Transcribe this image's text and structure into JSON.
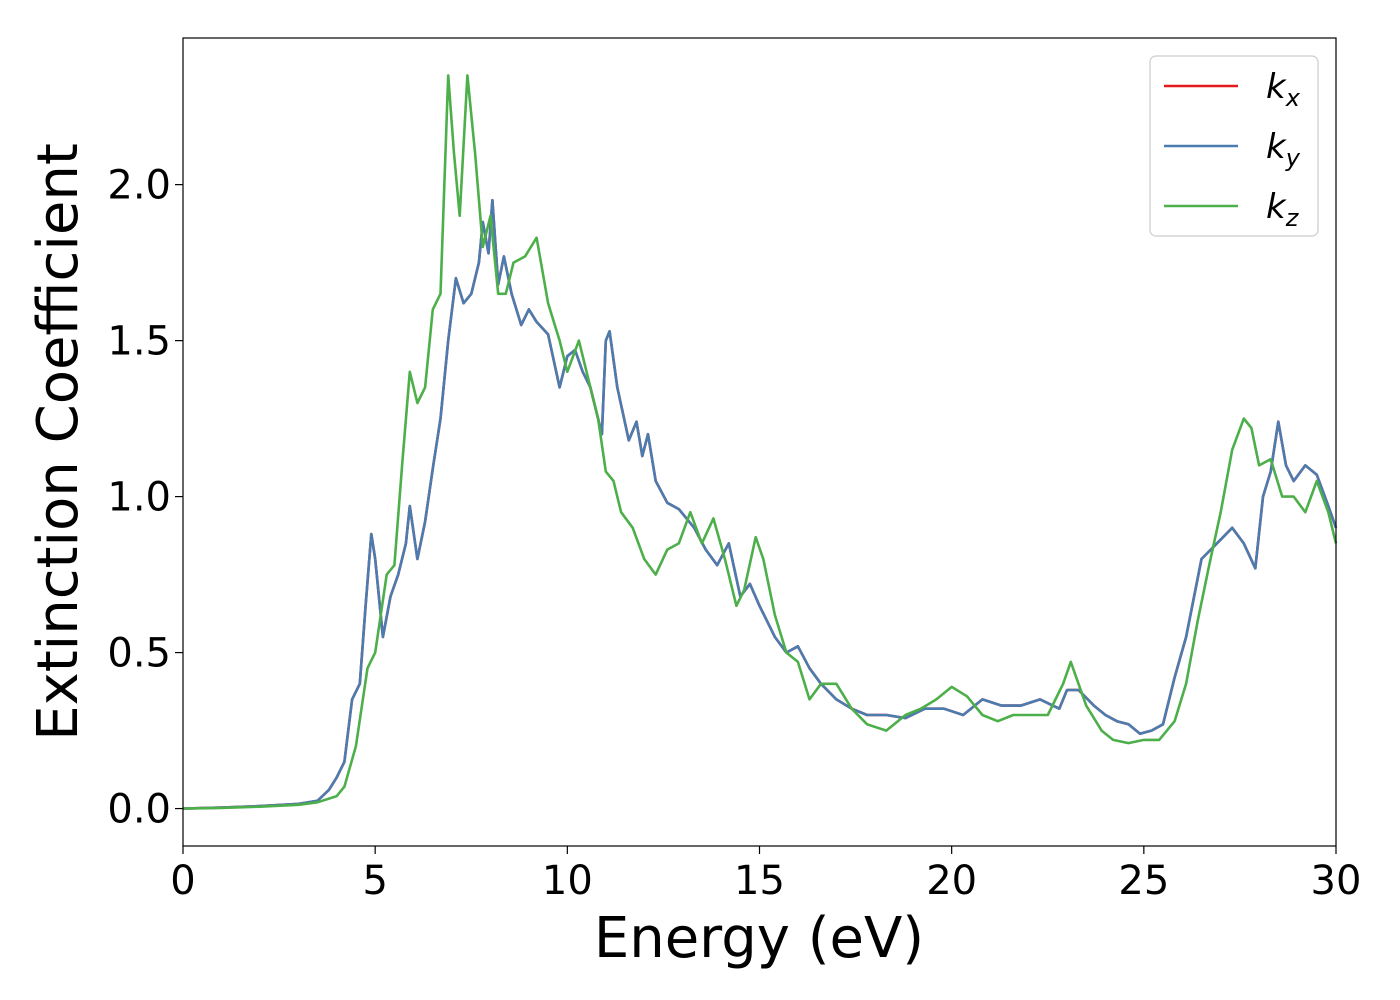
{
  "chart_data": {
    "type": "line",
    "xlabel": "Energy (eV)",
    "ylabel": "Extinction Coefficient",
    "xlim": [
      0,
      30
    ],
    "ylim": [
      -0.12,
      2.47
    ],
    "xticks": [
      "0",
      "5",
      "10",
      "15",
      "20",
      "25",
      "30"
    ],
    "yticks": [
      "0.0",
      "0.5",
      "1.0",
      "1.5",
      "2.0"
    ],
    "grid": false,
    "legend_position": "top-right",
    "series": [
      {
        "name": "k",
        "subscript": "x",
        "color": "#e41a1c",
        "x": [
          0,
          1,
          2,
          3,
          3.5,
          3.8,
          4.0,
          4.2,
          4.4,
          4.6,
          4.75,
          4.9,
          5.0,
          5.2,
          5.4,
          5.6,
          5.8,
          5.9,
          6.1,
          6.3,
          6.5,
          6.7,
          6.9,
          7.1,
          7.3,
          7.5,
          7.7,
          7.8,
          7.95,
          8.05,
          8.2,
          8.35,
          8.55,
          8.8,
          9.0,
          9.2,
          9.5,
          9.8,
          10.0,
          10.2,
          10.4,
          10.6,
          10.9,
          11.0,
          11.1,
          11.3,
          11.6,
          11.8,
          11.95,
          12.1,
          12.3,
          12.6,
          12.9,
          13.1,
          13.3,
          13.6,
          13.9,
          14.2,
          14.5,
          14.75,
          15.0,
          15.4,
          15.7,
          16.0,
          16.3,
          16.6,
          17.0,
          17.4,
          17.8,
          18.3,
          18.8,
          19.3,
          19.8,
          20.3,
          20.8,
          21.3,
          21.8,
          22.3,
          22.8,
          23.0,
          23.3,
          23.7,
          24.0,
          24.3,
          24.6,
          24.9,
          25.2,
          25.5,
          25.8,
          26.1,
          26.5,
          26.9,
          27.3,
          27.6,
          27.9,
          28.1,
          28.3,
          28.5,
          28.7,
          28.9,
          29.2,
          29.5,
          29.8,
          30
        ],
        "y": [
          0,
          0.003,
          0.008,
          0.015,
          0.025,
          0.06,
          0.1,
          0.15,
          0.35,
          0.4,
          0.65,
          0.88,
          0.8,
          0.55,
          0.68,
          0.75,
          0.85,
          0.97,
          0.8,
          0.92,
          1.09,
          1.25,
          1.5,
          1.7,
          1.62,
          1.65,
          1.75,
          1.88,
          1.78,
          1.95,
          1.68,
          1.77,
          1.65,
          1.55,
          1.6,
          1.56,
          1.52,
          1.35,
          1.45,
          1.47,
          1.4,
          1.35,
          1.2,
          1.5,
          1.53,
          1.35,
          1.18,
          1.24,
          1.13,
          1.2,
          1.05,
          0.98,
          0.96,
          0.93,
          0.9,
          0.83,
          0.78,
          0.85,
          0.68,
          0.72,
          0.65,
          0.55,
          0.5,
          0.52,
          0.45,
          0.4,
          0.35,
          0.32,
          0.3,
          0.3,
          0.29,
          0.32,
          0.32,
          0.3,
          0.35,
          0.33,
          0.33,
          0.35,
          0.32,
          0.38,
          0.38,
          0.33,
          0.3,
          0.28,
          0.27,
          0.24,
          0.25,
          0.27,
          0.42,
          0.55,
          0.8,
          0.85,
          0.9,
          0.85,
          0.77,
          1.0,
          1.08,
          1.24,
          1.1,
          1.05,
          1.1,
          1.07,
          0.97,
          0.9
        ]
      },
      {
        "name": "k",
        "subscript": "y",
        "color": "#4a7cb0",
        "x": [
          0,
          1,
          2,
          3,
          3.5,
          3.8,
          4.0,
          4.2,
          4.4,
          4.6,
          4.75,
          4.9,
          5.0,
          5.2,
          5.4,
          5.6,
          5.8,
          5.9,
          6.1,
          6.3,
          6.5,
          6.7,
          6.9,
          7.1,
          7.3,
          7.5,
          7.7,
          7.8,
          7.95,
          8.05,
          8.2,
          8.35,
          8.55,
          8.8,
          9.0,
          9.2,
          9.5,
          9.8,
          10.0,
          10.2,
          10.4,
          10.6,
          10.9,
          11.0,
          11.1,
          11.3,
          11.6,
          11.8,
          11.95,
          12.1,
          12.3,
          12.6,
          12.9,
          13.1,
          13.3,
          13.6,
          13.9,
          14.2,
          14.5,
          14.75,
          15.0,
          15.4,
          15.7,
          16.0,
          16.3,
          16.6,
          17.0,
          17.4,
          17.8,
          18.3,
          18.8,
          19.3,
          19.8,
          20.3,
          20.8,
          21.3,
          21.8,
          22.3,
          22.8,
          23.0,
          23.3,
          23.7,
          24.0,
          24.3,
          24.6,
          24.9,
          25.2,
          25.5,
          25.8,
          26.1,
          26.5,
          26.9,
          27.3,
          27.6,
          27.9,
          28.1,
          28.3,
          28.5,
          28.7,
          28.9,
          29.2,
          29.5,
          29.8,
          30
        ],
        "y": [
          0,
          0.003,
          0.008,
          0.015,
          0.025,
          0.06,
          0.1,
          0.15,
          0.35,
          0.4,
          0.65,
          0.88,
          0.8,
          0.55,
          0.68,
          0.75,
          0.85,
          0.97,
          0.8,
          0.92,
          1.09,
          1.25,
          1.5,
          1.7,
          1.62,
          1.65,
          1.75,
          1.88,
          1.78,
          1.95,
          1.68,
          1.77,
          1.65,
          1.55,
          1.6,
          1.56,
          1.52,
          1.35,
          1.45,
          1.47,
          1.4,
          1.35,
          1.2,
          1.5,
          1.53,
          1.35,
          1.18,
          1.24,
          1.13,
          1.2,
          1.05,
          0.98,
          0.96,
          0.93,
          0.9,
          0.83,
          0.78,
          0.85,
          0.68,
          0.72,
          0.65,
          0.55,
          0.5,
          0.52,
          0.45,
          0.4,
          0.35,
          0.32,
          0.3,
          0.3,
          0.29,
          0.32,
          0.32,
          0.3,
          0.35,
          0.33,
          0.33,
          0.35,
          0.32,
          0.38,
          0.38,
          0.33,
          0.3,
          0.28,
          0.27,
          0.24,
          0.25,
          0.27,
          0.42,
          0.55,
          0.8,
          0.85,
          0.9,
          0.85,
          0.77,
          1.0,
          1.08,
          1.24,
          1.1,
          1.05,
          1.1,
          1.07,
          0.97,
          0.9
        ]
      },
      {
        "name": "k",
        "subscript": "z",
        "color": "#4daf4a",
        "x": [
          0,
          1,
          2,
          3,
          3.5,
          4.0,
          4.2,
          4.5,
          4.8,
          5.0,
          5.3,
          5.5,
          5.7,
          5.9,
          6.1,
          6.3,
          6.5,
          6.7,
          6.9,
          7.05,
          7.2,
          7.4,
          7.6,
          7.8,
          8.0,
          8.2,
          8.4,
          8.6,
          8.9,
          9.2,
          9.5,
          9.8,
          10.0,
          10.3,
          10.6,
          10.8,
          11.0,
          11.2,
          11.4,
          11.7,
          12.0,
          12.3,
          12.6,
          12.9,
          13.2,
          13.5,
          13.8,
          14.1,
          14.4,
          14.6,
          14.9,
          15.1,
          15.4,
          15.7,
          16.0,
          16.3,
          16.6,
          17.0,
          17.4,
          17.8,
          18.3,
          18.8,
          19.2,
          19.6,
          20.0,
          20.4,
          20.8,
          21.2,
          21.6,
          22.0,
          22.5,
          22.9,
          23.1,
          23.5,
          23.9,
          24.2,
          24.6,
          25.0,
          25.4,
          25.8,
          26.1,
          26.4,
          26.7,
          27.0,
          27.3,
          27.6,
          27.8,
          28.0,
          28.3,
          28.6,
          28.9,
          29.2,
          29.5,
          29.8,
          30
        ],
        "y": [
          0,
          0.002,
          0.006,
          0.012,
          0.02,
          0.04,
          0.07,
          0.2,
          0.45,
          0.5,
          0.75,
          0.78,
          1.1,
          1.4,
          1.3,
          1.35,
          1.6,
          1.65,
          2.35,
          2.1,
          1.9,
          2.35,
          2.1,
          1.8,
          1.9,
          1.65,
          1.65,
          1.75,
          1.77,
          1.83,
          1.62,
          1.5,
          1.4,
          1.5,
          1.35,
          1.25,
          1.08,
          1.05,
          0.95,
          0.9,
          0.8,
          0.75,
          0.83,
          0.85,
          0.95,
          0.85,
          0.93,
          0.8,
          0.65,
          0.7,
          0.87,
          0.8,
          0.62,
          0.5,
          0.47,
          0.35,
          0.4,
          0.4,
          0.32,
          0.27,
          0.25,
          0.3,
          0.32,
          0.35,
          0.39,
          0.36,
          0.3,
          0.28,
          0.3,
          0.3,
          0.3,
          0.4,
          0.47,
          0.33,
          0.25,
          0.22,
          0.21,
          0.22,
          0.22,
          0.28,
          0.4,
          0.6,
          0.78,
          0.95,
          1.15,
          1.25,
          1.22,
          1.1,
          1.12,
          1.0,
          1.0,
          0.95,
          1.05,
          0.95,
          0.85
        ]
      }
    ]
  }
}
